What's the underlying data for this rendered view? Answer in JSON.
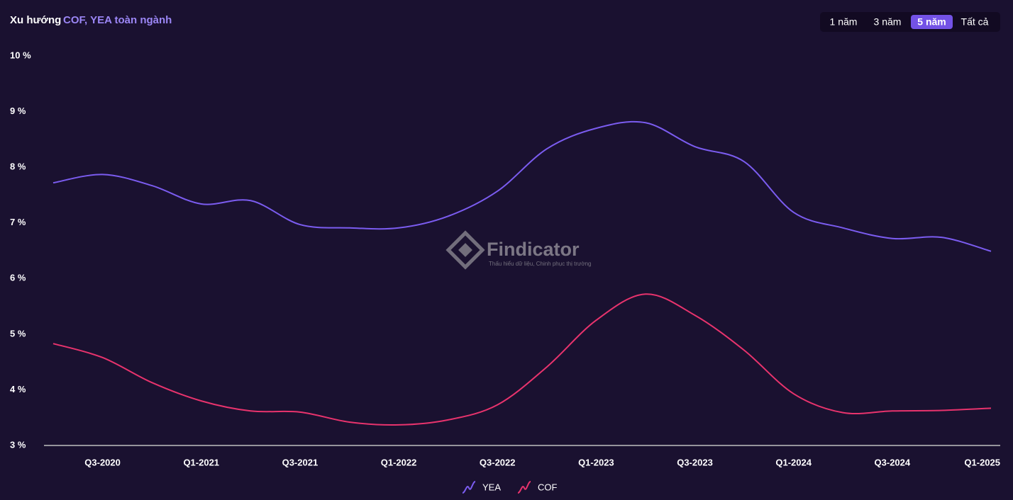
{
  "header": {
    "title": "Xu hướng",
    "subtitle": "COF, YEA toàn ngành"
  },
  "range_buttons": {
    "labels": [
      "1 năm",
      "3 năm",
      "5 năm",
      "Tất cả"
    ],
    "selected_index": 2
  },
  "watermark": {
    "name": "Findicator",
    "tagline": "Thấu hiểu dữ liệu, Chinh phục thị trường"
  },
  "chart_data": {
    "type": "line",
    "categories": [
      null,
      "Q3-2020",
      null,
      "Q1-2021",
      null,
      "Q3-2021",
      null,
      "Q1-2022",
      null,
      "Q3-2022",
      null,
      "Q1-2023",
      null,
      "Q3-2023",
      null,
      "Q1-2024",
      null,
      "Q3-2024",
      null,
      "Q1-2025"
    ],
    "series": [
      {
        "name": "YEA",
        "color": "#7b5cf0",
        "values": [
          7.72,
          7.87,
          7.67,
          7.34,
          7.4,
          6.97,
          6.91,
          6.91,
          7.12,
          7.57,
          8.33,
          8.7,
          8.8,
          8.37,
          8.1,
          7.19,
          6.91,
          6.72,
          6.74,
          6.49
        ]
      },
      {
        "name": "COF",
        "color": "#e8336d",
        "values": [
          4.83,
          4.58,
          4.13,
          3.8,
          3.62,
          3.6,
          3.42,
          3.37,
          3.46,
          3.73,
          4.41,
          5.25,
          5.72,
          5.34,
          4.71,
          3.93,
          3.59,
          3.62,
          3.63,
          3.67
        ]
      }
    ],
    "ylim": [
      3,
      10
    ],
    "yticks": [
      {
        "value": 3,
        "label": "3 %"
      },
      {
        "value": 4,
        "label": "4 %"
      },
      {
        "value": 5,
        "label": "5 %"
      },
      {
        "value": 6,
        "label": "6 %"
      },
      {
        "value": 7,
        "label": "7 %"
      },
      {
        "value": 8,
        "label": "8 %"
      },
      {
        "value": 9,
        "label": "9 %"
      },
      {
        "value": 10,
        "label": "10 %"
      }
    ],
    "grid": false
  }
}
